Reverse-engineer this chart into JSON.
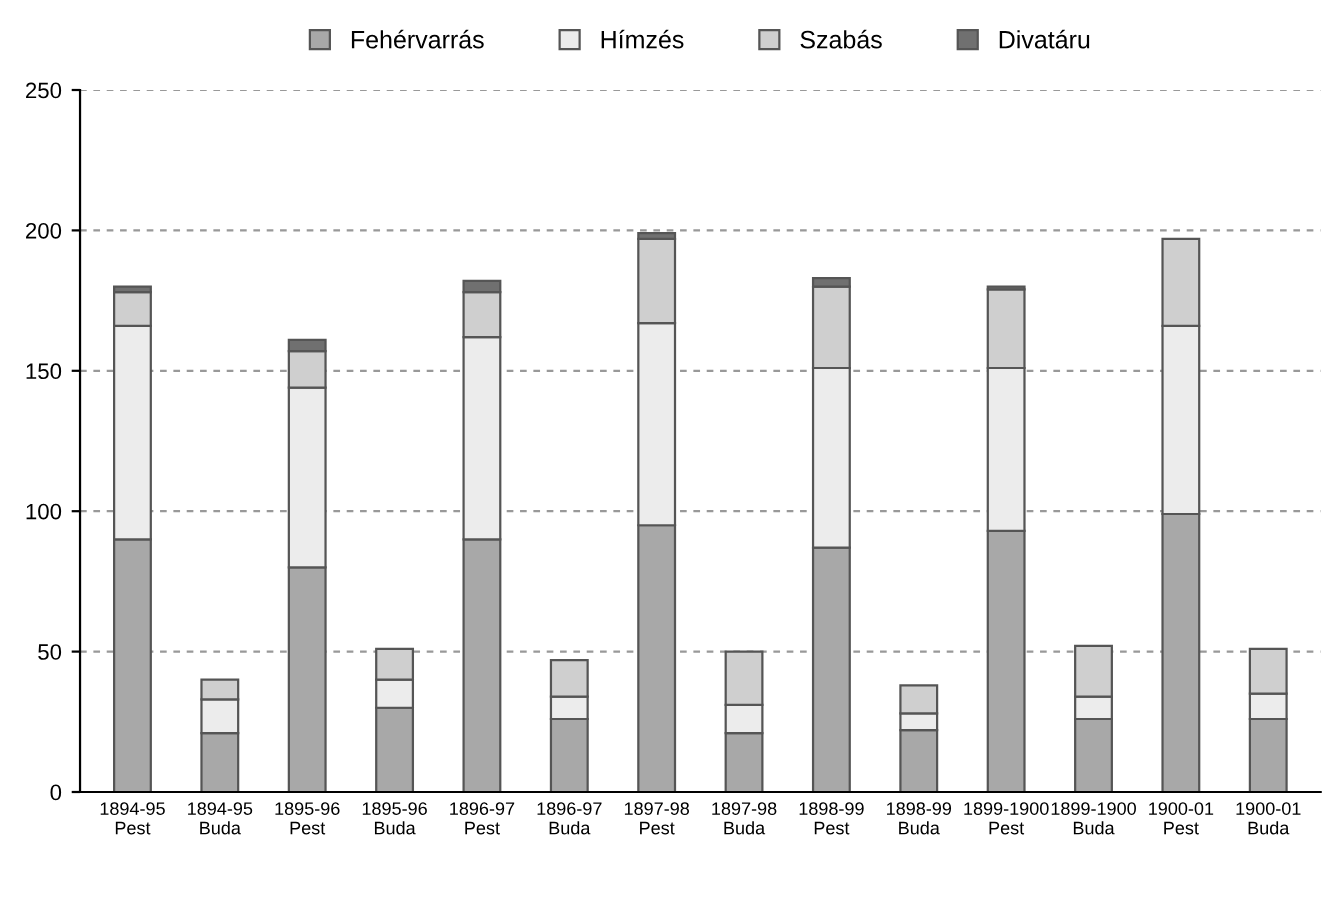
{
  "chart_data": {
    "type": "bar",
    "stacked": true,
    "categories": [
      "1894-95\nPest",
      "1894-95\nBuda",
      "1895-96\nPest",
      "1895-96\nBuda",
      "1896-97\nPest",
      "1896-97\nBuda",
      "1897-98\nPest",
      "1897-98\nBuda",
      "1898-99\nPest",
      "1898-99\nBuda",
      "1899-1900\nPest",
      "1899-1900\nBuda",
      "1900-01\nPest",
      "1900-01\nBuda"
    ],
    "series": [
      {
        "name": "Fehérvarrás",
        "color": "#a8a8a8",
        "values": [
          90,
          21,
          80,
          30,
          90,
          26,
          95,
          21,
          87,
          22,
          93,
          26,
          99,
          26
        ]
      },
      {
        "name": "Hímzés",
        "color": "#ececec",
        "values": [
          76,
          12,
          64,
          10,
          72,
          8,
          72,
          10,
          64,
          6,
          58,
          8,
          67,
          9
        ]
      },
      {
        "name": "Szabás",
        "color": "#cfcfcf",
        "values": [
          12,
          7,
          13,
          11,
          16,
          13,
          30,
          19,
          29,
          10,
          28,
          18,
          31,
          16
        ]
      },
      {
        "name": "Divatáru",
        "color": "#707070",
        "values": [
          2,
          null,
          4,
          null,
          4,
          null,
          2,
          null,
          3,
          null,
          1,
          null,
          null,
          null
        ]
      }
    ],
    "ylim": [
      0,
      250
    ],
    "yticks": [
      0,
      50,
      100,
      150,
      200,
      250
    ],
    "grid": "y",
    "legend": "top"
  }
}
